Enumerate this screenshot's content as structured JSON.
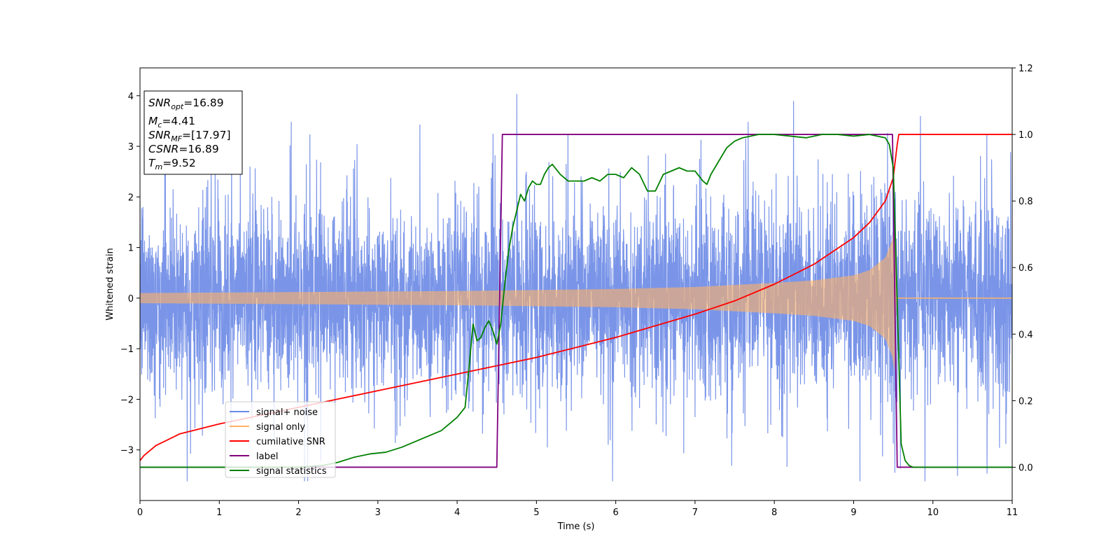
{
  "chart_data": {
    "type": "line",
    "xlabel": "Time (s)",
    "ylabel": "Whitened strain",
    "y2label": "",
    "xlim": [
      0,
      11
    ],
    "ylim": [
      -4,
      4.55
    ],
    "y2lim": [
      -0.1,
      1.2
    ],
    "x_ticks": [
      "0",
      "1",
      "2",
      "3",
      "4",
      "5",
      "6",
      "7",
      "8",
      "9",
      "10",
      "11"
    ],
    "y_ticks": [
      "−3",
      "−2",
      "−1",
      "0",
      "1",
      "2",
      "3",
      "4"
    ],
    "y2_ticks": [
      "0.0",
      "0.2",
      "0.4",
      "0.6",
      "0.8",
      "1.0",
      "1.2"
    ],
    "grid": false,
    "legend_position": "lower-left",
    "annotation": {
      "lines": [
        {
          "sym": "SNR",
          "sub": "opt",
          "rest": "=16.89"
        },
        {
          "sym": "M",
          "sub": "c",
          "rest": "=4.41"
        },
        {
          "sym": "SNR",
          "sub": "MF",
          "rest": "=[17.97]"
        },
        {
          "sym": "CSNR",
          "sub": "",
          "rest": "=16.89"
        },
        {
          "sym": "T",
          "sub": "m",
          "rest": "=9.52"
        }
      ]
    },
    "series": [
      {
        "name": "signal+ noise",
        "axis": "left",
        "color": "#6B8AE6",
        "kind": "noise",
        "description_values": {
          "amplitude_std": 0.75,
          "spikes_max": 4.2,
          "spikes_min": -3.6
        }
      },
      {
        "name": "signal only",
        "axis": "left",
        "color": "#FFB366",
        "kind": "chirp",
        "amplitude_envelope": {
          "x": [
            0,
            1,
            2,
            3,
            4,
            5,
            6,
            7,
            8,
            8.5,
            9,
            9.2,
            9.4,
            9.5,
            9.52,
            9.53,
            11
          ],
          "y": [
            0.1,
            0.11,
            0.12,
            0.13,
            0.14,
            0.16,
            0.18,
            0.22,
            0.3,
            0.35,
            0.45,
            0.55,
            0.8,
            1.2,
            1.5,
            0,
            0
          ]
        }
      },
      {
        "name": "cumilative SNR",
        "axis": "right",
        "color": "#FF0000",
        "x": [
          0,
          0.05,
          0.2,
          0.5,
          1,
          1.5,
          2,
          2.5,
          3,
          3.5,
          4,
          4.5,
          5,
          5.5,
          6,
          6.5,
          7,
          7.5,
          8,
          8.5,
          9,
          9.2,
          9.4,
          9.5,
          9.55,
          9.57,
          11
        ],
        "y": [
          0.02,
          0.035,
          0.065,
          0.1,
          0.13,
          0.155,
          0.18,
          0.205,
          0.23,
          0.255,
          0.28,
          0.305,
          0.33,
          0.36,
          0.39,
          0.425,
          0.46,
          0.5,
          0.55,
          0.61,
          0.69,
          0.735,
          0.8,
          0.87,
          0.97,
          1.0,
          1.0
        ]
      },
      {
        "name": "label",
        "axis": "right",
        "color": "#800080",
        "x": [
          0,
          4.5,
          4.57,
          9.49,
          9.55,
          11
        ],
        "y": [
          0,
          0,
          1,
          1,
          0,
          0
        ]
      },
      {
        "name": "signal statistics",
        "axis": "right",
        "color": "#008000",
        "x": [
          0,
          0.5,
          1,
          1.5,
          2,
          2.3,
          2.5,
          2.7,
          2.9,
          3.1,
          3.3,
          3.4,
          3.5,
          3.6,
          3.7,
          3.8,
          3.9,
          4.0,
          4.1,
          4.15,
          4.2,
          4.25,
          4.3,
          4.35,
          4.4,
          4.45,
          4.5,
          4.55,
          4.6,
          4.65,
          4.7,
          4.75,
          4.8,
          4.85,
          4.9,
          4.95,
          5.0,
          5.05,
          5.1,
          5.15,
          5.2,
          5.3,
          5.4,
          5.5,
          5.6,
          5.7,
          5.8,
          5.9,
          6.0,
          6.1,
          6.2,
          6.3,
          6.4,
          6.5,
          6.6,
          6.7,
          6.8,
          6.9,
          7.0,
          7.1,
          7.15,
          7.2,
          7.3,
          7.4,
          7.5,
          7.6,
          7.7,
          7.8,
          8.0,
          8.2,
          8.4,
          8.6,
          8.8,
          9.0,
          9.2,
          9.4,
          9.45,
          9.5,
          9.55,
          9.6,
          9.65,
          9.7,
          9.75,
          9.8,
          10,
          11
        ],
        "y": [
          0,
          0,
          0,
          0,
          0,
          0.005,
          0.015,
          0.03,
          0.04,
          0.045,
          0.06,
          0.07,
          0.08,
          0.09,
          0.1,
          0.11,
          0.13,
          0.15,
          0.18,
          0.3,
          0.43,
          0.38,
          0.39,
          0.42,
          0.44,
          0.41,
          0.37,
          0.43,
          0.55,
          0.65,
          0.72,
          0.77,
          0.82,
          0.8,
          0.84,
          0.86,
          0.85,
          0.85,
          0.88,
          0.9,
          0.91,
          0.88,
          0.86,
          0.86,
          0.86,
          0.87,
          0.86,
          0.88,
          0.88,
          0.87,
          0.9,
          0.88,
          0.83,
          0.83,
          0.88,
          0.89,
          0.9,
          0.89,
          0.89,
          0.86,
          0.85,
          0.88,
          0.92,
          0.96,
          0.98,
          0.99,
          0.995,
          1.0,
          1.0,
          0.995,
          0.99,
          1.0,
          1.0,
          0.995,
          1.0,
          0.99,
          0.97,
          0.9,
          0.5,
          0.07,
          0.02,
          0.005,
          0,
          0,
          0,
          0
        ]
      }
    ]
  }
}
